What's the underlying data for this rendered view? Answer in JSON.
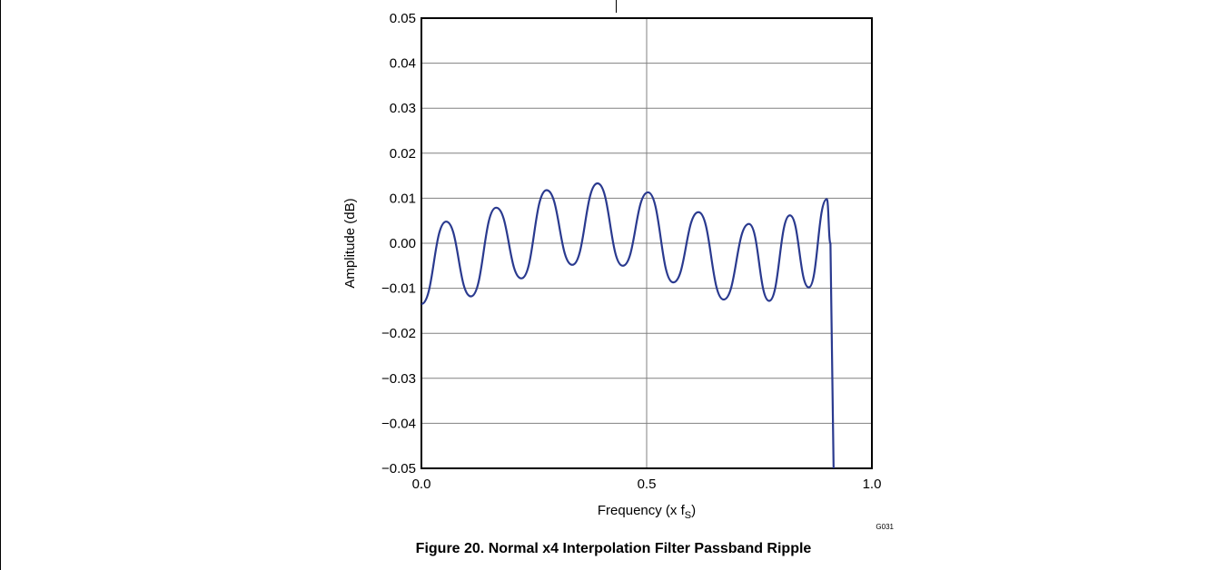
{
  "caption": "Figure 20. Normal x4 Interpolation Filter Passband Ripple",
  "figure_code": "G031",
  "colors": {
    "series": "#2a3a8f",
    "grid": "#808080",
    "frame": "#000000"
  },
  "chart_data": {
    "type": "line",
    "title": "",
    "xlabel": "Frequency (x f",
    "xlabel_subscript": "S",
    "xlabel_suffix": ")",
    "ylabel": "Amplitude (dB)",
    "xlim": [
      0.0,
      1.0
    ],
    "ylim": [
      -0.05,
      0.05
    ],
    "x_ticks": [
      0.0,
      0.5,
      1.0
    ],
    "x_tick_labels": [
      "0.0",
      "0.5",
      "1.0"
    ],
    "y_ticks": [
      -0.05,
      -0.04,
      -0.03,
      -0.02,
      -0.01,
      0.0,
      0.01,
      0.02,
      0.03,
      0.04,
      0.05
    ],
    "y_tick_labels": [
      "−0.05",
      "−0.04",
      "−0.03",
      "−0.02",
      "−0.01",
      "0.00",
      "0.01",
      "0.02",
      "0.03",
      "0.04",
      "0.05"
    ],
    "grid": true,
    "series": [
      {
        "x": [
          0.0,
          0.055,
          0.11,
          0.166,
          0.222,
          0.278,
          0.335,
          0.391,
          0.447,
          0.503,
          0.559,
          0.615,
          0.671,
          0.727,
          0.772,
          0.818,
          0.86,
          0.9,
          0.908,
          0.915
        ],
        "y": [
          -0.0135,
          0.0048,
          -0.0118,
          0.0079,
          -0.0078,
          0.0118,
          -0.0048,
          0.0133,
          -0.005,
          0.0113,
          -0.0087,
          0.0069,
          -0.0125,
          0.0043,
          -0.0128,
          0.0062,
          -0.0098,
          0.0098,
          0.0,
          -0.05
        ]
      }
    ]
  }
}
